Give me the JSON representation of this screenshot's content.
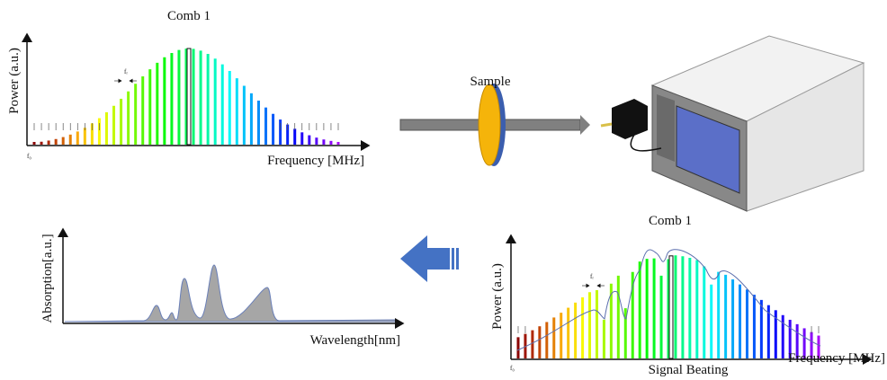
{
  "comb_top": {
    "title": "Comb 1",
    "y_label": "Power (a.u.)",
    "x_label": "Frequency [MHz]",
    "f0_label": "f₀",
    "fr_label": "fᵣ"
  },
  "sample": {
    "label": "Sample"
  },
  "comb_bottom": {
    "title": "Comb 1",
    "y_label": "Power (a.u.)",
    "x_label": "Frequency [MHz]",
    "caption": "Signal Beating",
    "f0_label": "f₀",
    "fr_label": "fᵣ"
  },
  "absorption": {
    "y_label": "Absorption[a.u.]",
    "x_label": "Wavelength[nm]"
  }
}
